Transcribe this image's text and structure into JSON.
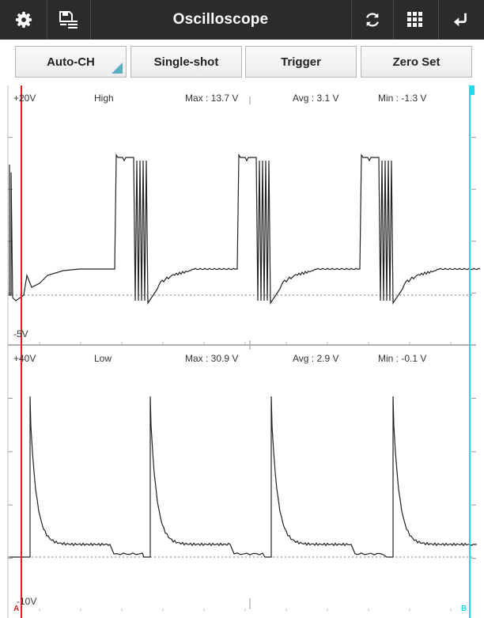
{
  "toolbar": {
    "title": "Oscilloscope",
    "icons": [
      "gear-icon",
      "save-list-icon",
      "refresh-icon",
      "grid-icon",
      "back-icon"
    ]
  },
  "buttons": {
    "auto_ch": "Auto-CH",
    "single_shot": "Single-shot",
    "trigger": "Trigger",
    "zero_set": "Zero Set"
  },
  "channel_high": {
    "top_scale": "+20V",
    "bottom_scale": "-5V",
    "name": "High",
    "max": "Max : 13.7 V",
    "avg": "Avg : 3.1 V",
    "min": "Min : -1.3 V"
  },
  "channel_low": {
    "top_scale": "+40V",
    "bottom_scale": "-10V",
    "name": "Low",
    "max": "Max : 30.9 V",
    "avg": "Avg : 2.9 V",
    "min": "Min : -0.1 V"
  },
  "cursors": {
    "a_label": "A",
    "b_label": "B",
    "a_color": "#e02020",
    "b_color": "#20d8f0"
  },
  "colors": {
    "toolbar_bg": "#2b2b2b",
    "trace": "#222222",
    "accent": "#5aaec4"
  }
}
